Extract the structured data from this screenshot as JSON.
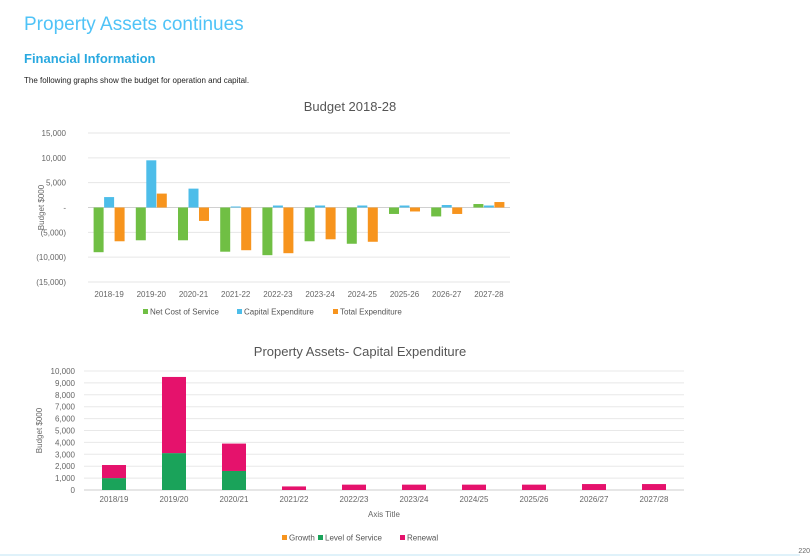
{
  "page": {
    "title": "Property Assets continues",
    "section_title": "Financial Information",
    "intro": "The following graphs show the budget for operation and capital.",
    "page_number": "220"
  },
  "chart_data": [
    {
      "type": "bar",
      "title": "Budget 2018-28",
      "xlabel": "",
      "ylabel": "Budget $000",
      "ylim": [
        -15000,
        15000
      ],
      "yticks": [
        15000,
        10000,
        5000,
        0,
        -5000,
        -10000,
        -15000
      ],
      "ytick_labels": [
        "15,000",
        "10,000",
        "5,000",
        "-",
        "(5,000)",
        "(10,000)",
        "(15,000)"
      ],
      "grid": true,
      "legend_position": "bottom",
      "categories": [
        "2018-19",
        "2019-20",
        "2020-21",
        "2021-22",
        "2022-23",
        "2023-24",
        "2024-25",
        "2025-26",
        "2026-27",
        "2027-28"
      ],
      "series": [
        {
          "name": "Net Cost of Service",
          "color": "#70bf44",
          "values": [
            -9000,
            -6600,
            -6600,
            -8900,
            -9600,
            -6800,
            -7300,
            -1300,
            -1800,
            700
          ]
        },
        {
          "name": "Capital Expenditure",
          "color": "#4dbde9",
          "values": [
            2100,
            9500,
            3800,
            200,
            400,
            400,
            400,
            400,
            500,
            400
          ]
        },
        {
          "name": "Total Expenditure",
          "color": "#f7941d",
          "values": [
            -6800,
            2800,
            -2700,
            -8600,
            -9200,
            -6400,
            -6900,
            -800,
            -1300,
            1100
          ]
        }
      ]
    },
    {
      "type": "bar",
      "stacked": true,
      "title": "Property Assets- Capital Expenditure",
      "xlabel": "Axis Title",
      "ylabel": "Budget $000",
      "ylim": [
        0,
        10000
      ],
      "yticks": [
        10000,
        9000,
        8000,
        7000,
        6000,
        5000,
        4000,
        3000,
        2000,
        1000,
        0
      ],
      "ytick_labels": [
        "10,000",
        "9,000",
        "8,000",
        "7,000",
        "6,000",
        "5,000",
        "4,000",
        "3,000",
        "2,000",
        "1,000",
        "0"
      ],
      "grid": true,
      "legend_position": "bottom",
      "categories": [
        "2018/19",
        "2019/20",
        "2020/21",
        "2021/22",
        "2022/23",
        "2023/24",
        "2024/25",
        "2025/26",
        "2026/27",
        "2027/28"
      ],
      "series": [
        {
          "name": "Growth",
          "color": "#f7941d",
          "values": [
            0,
            0,
            0,
            0,
            0,
            0,
            0,
            0,
            0,
            0
          ]
        },
        {
          "name": "Level of Service",
          "color": "#1aa35a",
          "values": [
            1000,
            3100,
            1600,
            0,
            0,
            0,
            0,
            0,
            0,
            0
          ]
        },
        {
          "name": "Renewal",
          "color": "#e5126c",
          "values": [
            1100,
            6400,
            2300,
            300,
            450,
            450,
            450,
            450,
            500,
            500
          ]
        }
      ]
    }
  ]
}
